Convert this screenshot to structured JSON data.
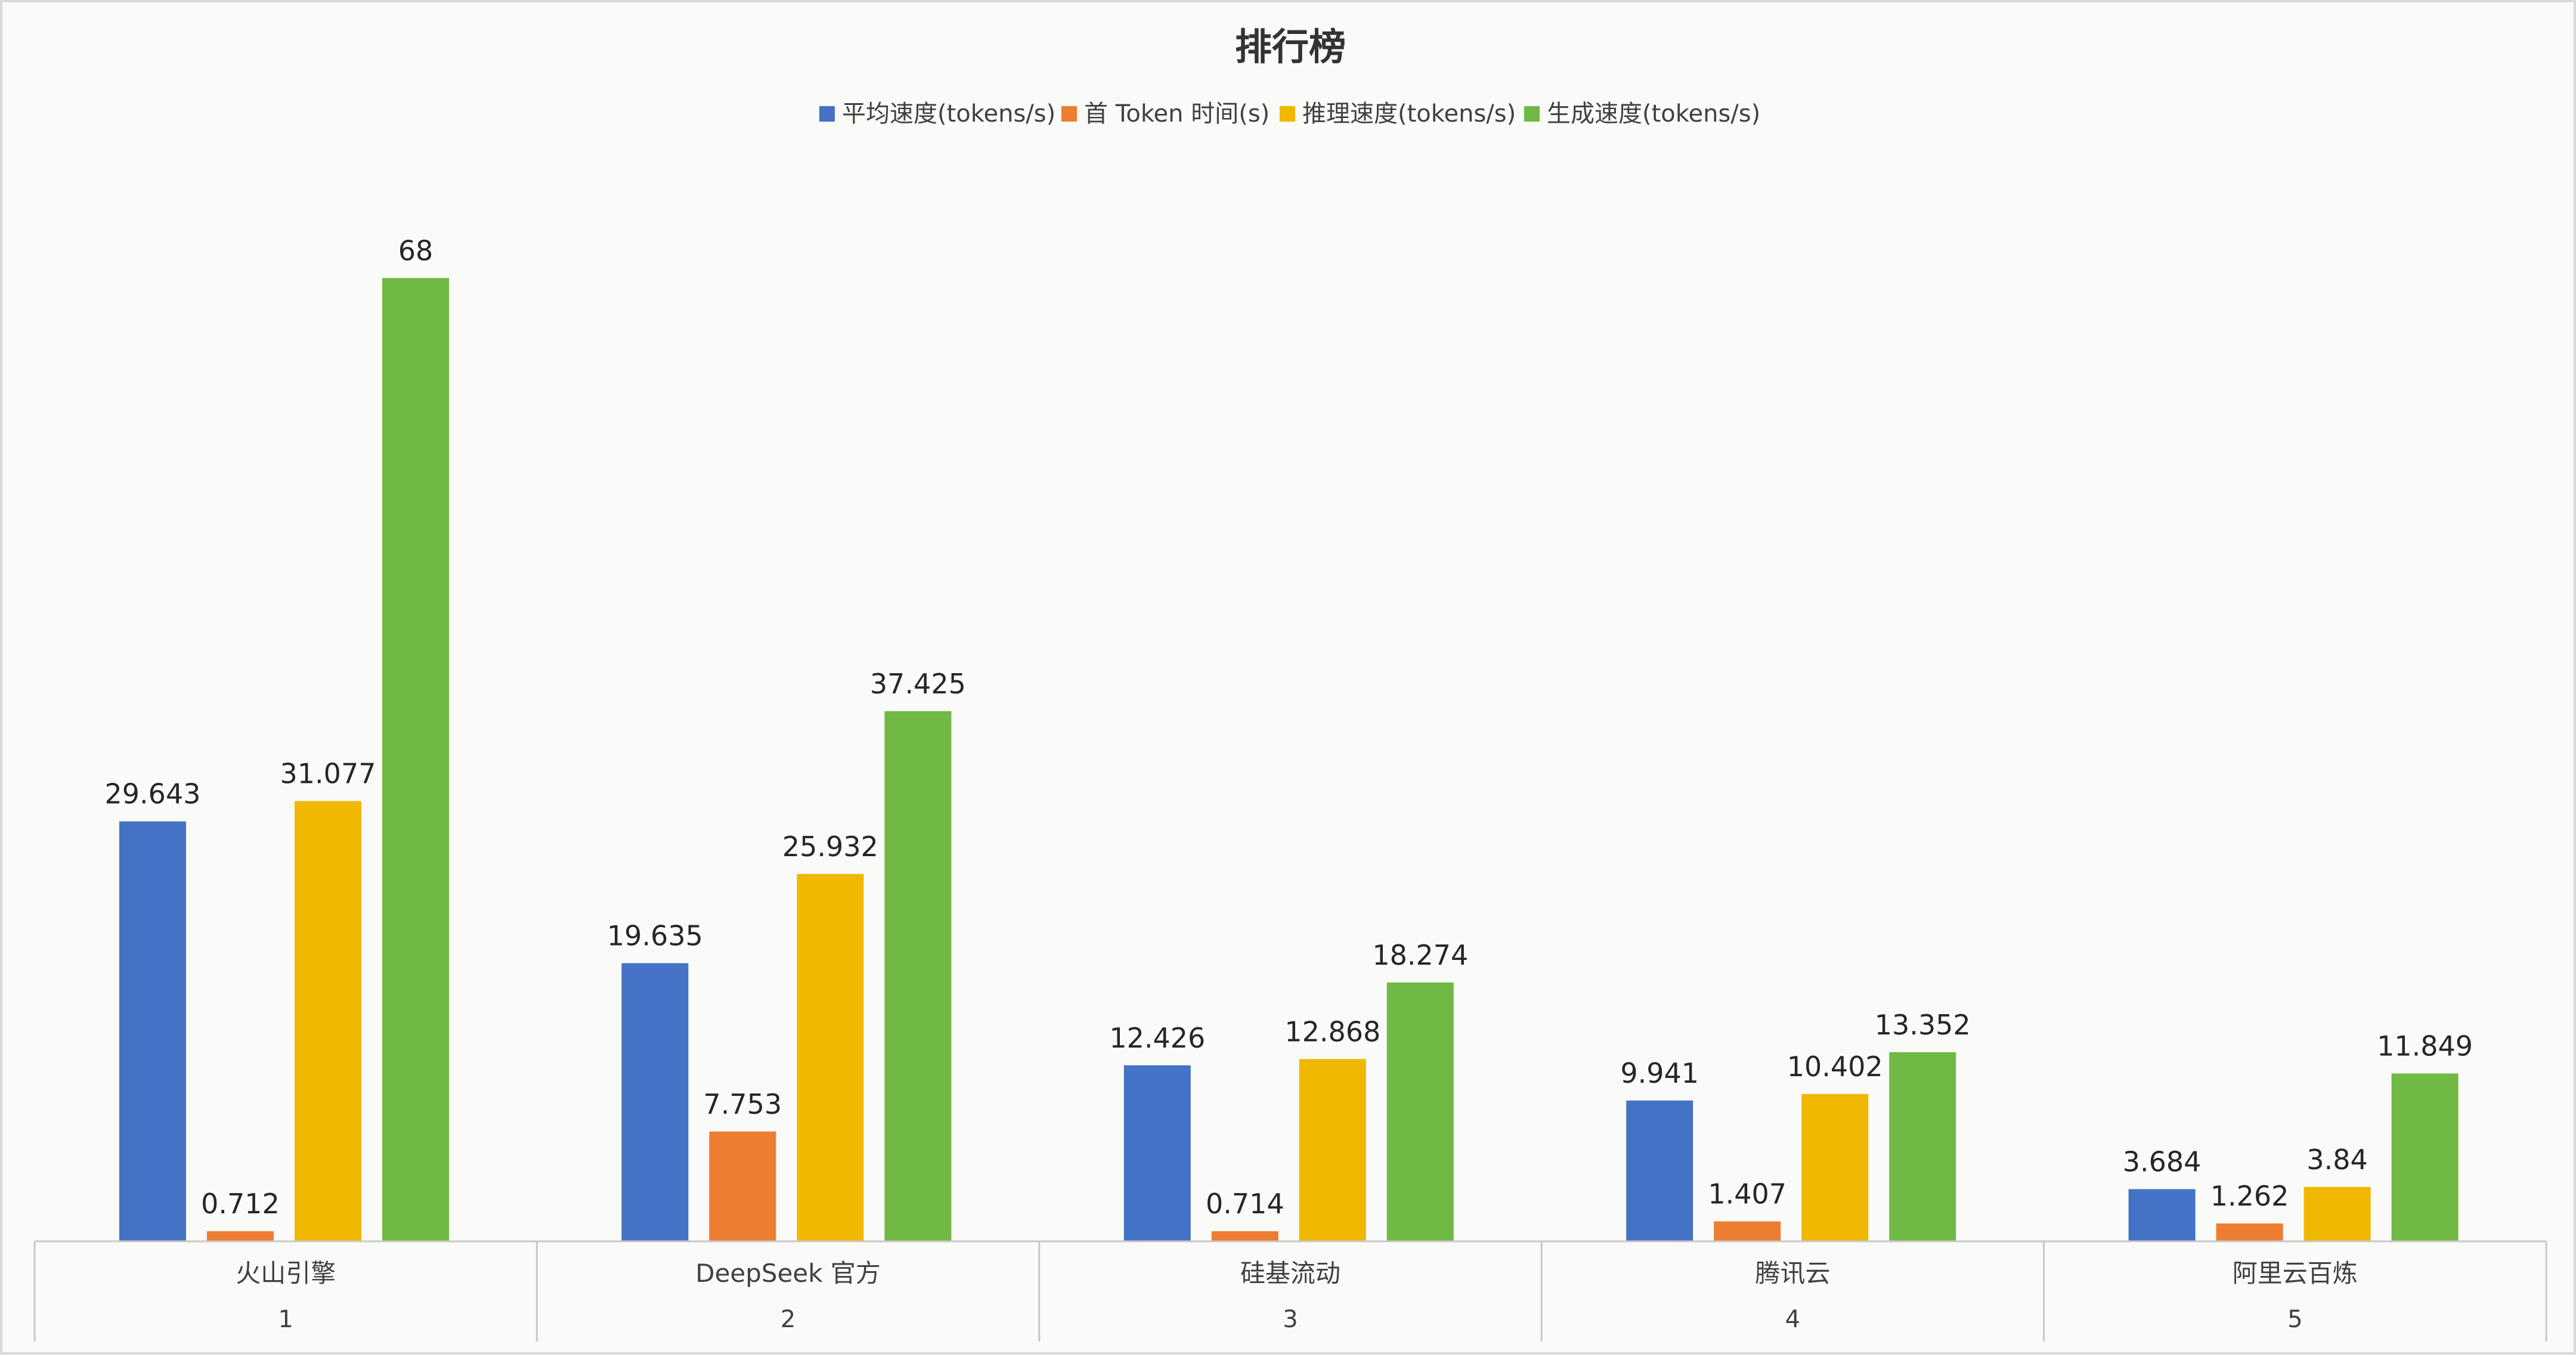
{
  "chart_data": {
    "type": "bar",
    "title": "排行榜",
    "xlabel": "",
    "ylabel": "",
    "ylim": [
      0,
      75
    ],
    "grid": false,
    "legend_position": "top",
    "categories": [
      "火山引擎",
      "DeepSeek 官方",
      "硅基流动",
      "腾讯云",
      "阿里云百炼"
    ],
    "ranks": [
      "1",
      "2",
      "3",
      "4",
      "5"
    ],
    "series": [
      {
        "name": "平均速度(tokens/s)",
        "color": "#4472c4",
        "values": [
          29.643,
          19.635,
          12.426,
          9.941,
          3.684
        ],
        "labels": [
          "29.643",
          "19.635",
          "12.426",
          "9.941",
          "3.684"
        ]
      },
      {
        "name": "首 Token 时间(s)",
        "color": "#ed7d31",
        "values": [
          0.712,
          7.753,
          0.714,
          1.407,
          1.262
        ],
        "labels": [
          "0.712",
          "7.753",
          "0.714",
          "1.407",
          "1.262"
        ]
      },
      {
        "name": "推理速度(tokens/s)",
        "color": "#f0b800",
        "values": [
          31.077,
          25.932,
          12.868,
          10.402,
          3.84
        ],
        "labels": [
          "31.077",
          "25.932",
          "12.868",
          "10.402",
          "3.84"
        ]
      },
      {
        "name": "生成速度(tokens/s)",
        "color": "#70b944",
        "values": [
          68,
          37.425,
          18.274,
          13.352,
          11.849
        ],
        "labels": [
          "68",
          "37.425",
          "18.274",
          "13.352",
          "11.849"
        ]
      }
    ]
  }
}
